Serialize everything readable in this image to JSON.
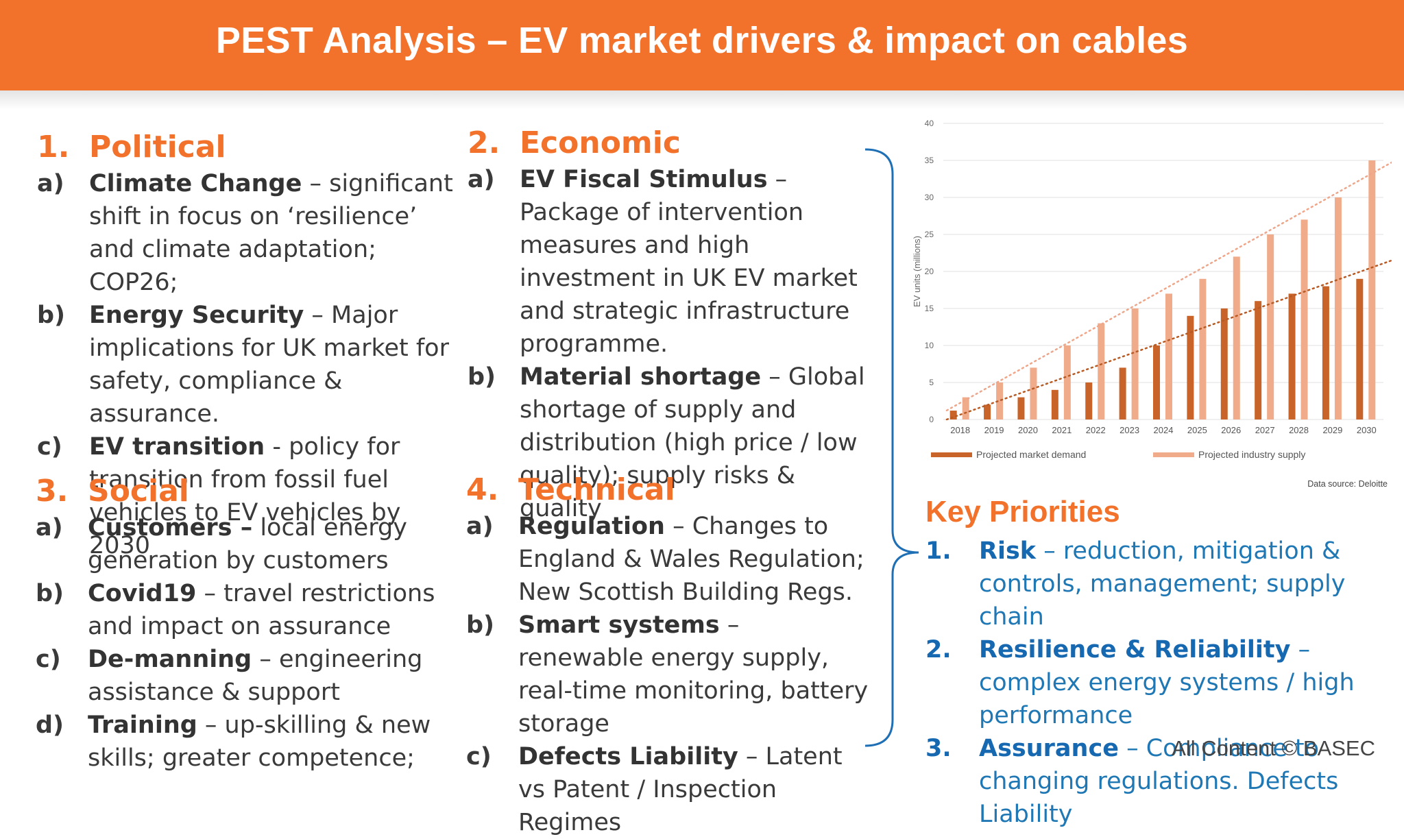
{
  "title": "PEST Analysis – EV market drivers & impact on cables",
  "political": {
    "num": "1.",
    "heading": "Political",
    "items": [
      {
        "letter": "a)",
        "term": "Climate Change",
        "text": " – significant shift in focus on ‘resilience’ and climate adaptation; COP26;"
      },
      {
        "letter": "b)",
        "term": "Energy Security",
        "text": " – Major implications for UK market for safety, compliance & assurance."
      },
      {
        "letter": "c)",
        "term": "EV transition",
        "text": " - policy for transition from fossil fuel vehicles to EV vehicles by 2030"
      }
    ]
  },
  "economic": {
    "num": "2.",
    "heading": "Economic",
    "items": [
      {
        "letter": "a)",
        "term": "EV Fiscal Stimulus",
        "text": " – Package of intervention measures and high investment in UK EV market and strategic infrastructure programme."
      },
      {
        "letter": "b)",
        "term": "Material shortage",
        "text": " – Global shortage of supply and distribution (high price / low quality); supply risks & quality"
      }
    ]
  },
  "social": {
    "num": "3.",
    "heading": "Social",
    "items": [
      {
        "letter": "a)",
        "term": "Customers –",
        "text": " local energy generation by customers"
      },
      {
        "letter": "b)",
        "term": "Covid19",
        "text": " – travel restrictions and impact on assurance"
      },
      {
        "letter": "c)",
        "term": "De-manning",
        "text": " – engineering assistance & support"
      },
      {
        "letter": "d)",
        "term": "Training",
        "text": " – up-skilling & new skills; greater competence;"
      }
    ]
  },
  "technical": {
    "num": "4.",
    "heading": "Technical",
    "items": [
      {
        "letter": "a)",
        "term": "Regulation",
        "text": " – Changes to England & Wales Regulation; New Scottish Building Regs."
      },
      {
        "letter": "b)",
        "term": "Smart systems",
        "text": " – renewable energy supply, real-time monitoring, battery storage"
      },
      {
        "letter": "c)",
        "term": "Defects Liability",
        "text": " – Latent vs Patent / Inspection Regimes"
      }
    ]
  },
  "key_priorities": {
    "heading": "Key Priorities",
    "items": [
      {
        "letter": "1.",
        "term": "Risk",
        "text": " – reduction, mitigation & controls, management; supply chain"
      },
      {
        "letter": "2.",
        "term": "Resilience & Reliability",
        "text": " – complex energy systems / high performance"
      },
      {
        "letter": "3.",
        "term": "Assurance",
        "text": " – Compliance to changing regulations. Defects Liability"
      }
    ]
  },
  "copyright": "All Content © BASEC",
  "colors": {
    "orange": "#f2722b",
    "demand": "#c8642a",
    "supply": "#f0ab8a",
    "priority_blue": "#1f77b4"
  },
  "chart_data": {
    "type": "bar",
    "categories": [
      "2018",
      "2019",
      "2020",
      "2021",
      "2022",
      "2023",
      "2024",
      "2025",
      "2026",
      "2027",
      "2028",
      "2029",
      "2030"
    ],
    "series": [
      {
        "name": "Projected market demand",
        "values": [
          1.2,
          2,
          3,
          4,
          5,
          7,
          10,
          14,
          15,
          16,
          17,
          18,
          19
        ]
      },
      {
        "name": "Projected industry supply",
        "values": [
          3,
          5,
          7,
          10,
          13,
          15,
          17,
          19,
          22,
          25,
          27,
          30,
          35
        ]
      }
    ],
    "ylabel": "EV units (millions)",
    "ylim": [
      0,
      40
    ],
    "yticks": [
      0,
      5,
      10,
      15,
      20,
      25,
      30,
      35,
      40
    ],
    "trendlines": true,
    "grid": true,
    "legend": "bottom",
    "source": "Data source: Deloitte"
  }
}
